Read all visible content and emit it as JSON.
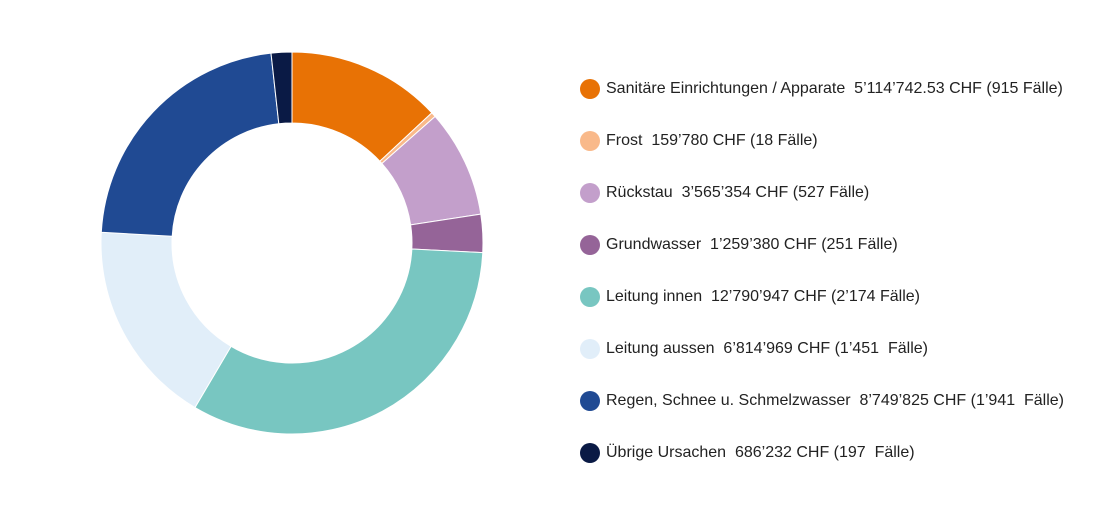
{
  "chart_data": {
    "type": "pie",
    "donut": true,
    "title": "",
    "legend_position": "right",
    "slices": [
      {
        "label": "Sanitäre Einrichtungen / Apparate  5’114’742.53 CHF (915 Fälle)",
        "value": 5114742.53,
        "color": "#E87205"
      },
      {
        "label": "Frost  159’780 CHF (18 Fälle)",
        "value": 159780,
        "color": "#F9B98A"
      },
      {
        "label": "Rückstau  3’565’354 CHF (527 Fälle)",
        "value": 3565354,
        "color": "#C39FCB"
      },
      {
        "label": "Grundwasser  1’259’380 CHF (251 Fälle)",
        "value": 1259380,
        "color": "#956498"
      },
      {
        "label": "Leitung innen  12’790’947 CHF (2’174 Fälle)",
        "value": 12790947,
        "color": "#78C6C1"
      },
      {
        "label": "Leitung aussen  6’814’969 CHF (1’451  Fälle)",
        "value": 6814969,
        "color": "#E1EEF9"
      },
      {
        "label": "Regen, Schnee u. Schmelzwasser  8’749’825 CHF (1’941  Fälle)",
        "value": 8749825,
        "color": "#204A93"
      },
      {
        "label": "Übrige Ursachen  686’232 CHF (197  Fälle)",
        "value": 686232,
        "color": "#0A1A45"
      }
    ]
  }
}
